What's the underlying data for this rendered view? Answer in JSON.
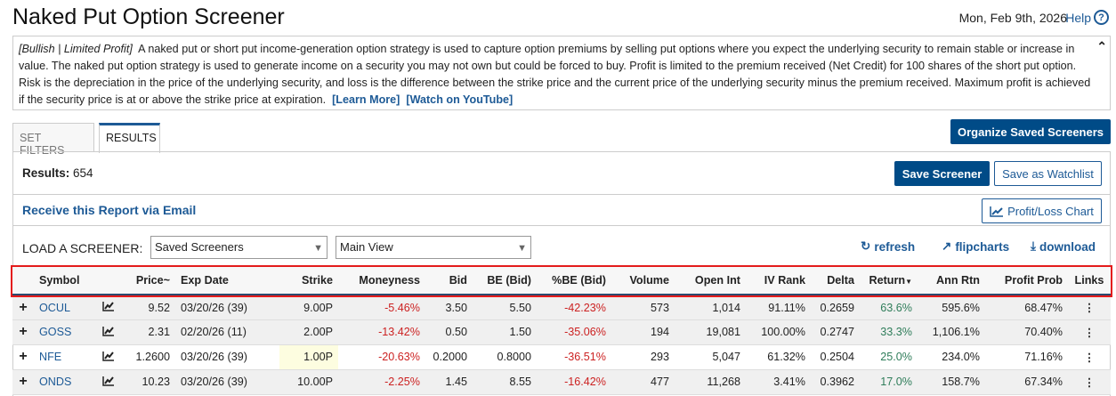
{
  "header": {
    "title": "Naked Put Option Screener",
    "date": "Mon, Feb 9th, 2026",
    "help_label": "Help"
  },
  "description": {
    "tags": "[Bullish | Limited Profit]",
    "text": "A naked put or short put income-generation option strategy is used to capture option premiums by selling put options where you expect the underlying security to remain stable or increase in value. The naked put option strategy is used to generate income on a security you may not own but could be forced to buy. Profit is limited to the premium received (Net Credit) for 100 shares of the short put option. Risk is the depreciation in the price of the underlying security, and loss is the difference between the strike price and the current price of the underlying security minus the premium received. Maximum profit is achieved if the security price is at or above the strike price at expiration.",
    "learn_more": "[Learn More]",
    "youtube": "[Watch on YouTube]"
  },
  "tabs": [
    {
      "label": "SET FILTERS",
      "active": false
    },
    {
      "label": "RESULTS",
      "active": true
    }
  ],
  "toolbar": {
    "organize": "Organize Saved Screeners",
    "results_label": "Results:",
    "results_count": "654",
    "save_screener": "Save Screener",
    "save_watchlist": "Save as Watchlist",
    "email": "Receive this Report via Email",
    "pl_chart": "Profit/Loss Chart",
    "load_label": "LOAD A SCREENER:",
    "select1": "Saved Screeners",
    "select2": "Main View",
    "refresh": "refresh",
    "flipcharts": "flipcharts",
    "download": "download"
  },
  "colors": {
    "accent": "#004b87",
    "negative": "#cc2222",
    "positive": "#2f7d5a",
    "highlight": "#e41b1b"
  },
  "table": {
    "columns": [
      "Symbol",
      "Price~",
      "Exp Date",
      "Strike",
      "Moneyness",
      "Bid",
      "BE (Bid)",
      "%BE (Bid)",
      "Volume",
      "Open Int",
      "IV Rank",
      "Delta",
      "Return",
      "Ann Rtn",
      "Profit Prob",
      "Links"
    ],
    "sort_column": "Return",
    "sort_dir": "desc",
    "rows": [
      {
        "symbol": "OCUL",
        "price": "9.52",
        "exp": "03/20/26 (39)",
        "strike": "9.00P",
        "moneyness": "-5.46%",
        "bid": "3.50",
        "be": "5.50",
        "pbe": "-42.23%",
        "volume": "573",
        "oi": "1,014",
        "ivr": "91.11%",
        "delta": "0.2659",
        "ret": "63.6%",
        "ann": "595.6%",
        "prob": "68.47%"
      },
      {
        "symbol": "GOSS",
        "price": "2.31",
        "exp": "02/20/26 (11)",
        "strike": "2.00P",
        "moneyness": "-13.42%",
        "bid": "0.50",
        "be": "1.50",
        "pbe": "-35.06%",
        "volume": "194",
        "oi": "19,081",
        "ivr": "100.00%",
        "delta": "0.2747",
        "ret": "33.3%",
        "ann": "1,106.1%",
        "prob": "70.40%"
      },
      {
        "symbol": "NFE",
        "price": "1.2600",
        "exp": "03/20/26 (39)",
        "strike": "1.00P",
        "moneyness": "-20.63%",
        "bid": "0.2000",
        "be": "0.8000",
        "pbe": "-36.51%",
        "volume": "293",
        "oi": "5,047",
        "ivr": "61.32%",
        "delta": "0.2504",
        "ret": "25.0%",
        "ann": "234.0%",
        "prob": "71.16%"
      },
      {
        "symbol": "ONDS",
        "price": "10.23",
        "exp": "03/20/26 (39)",
        "strike": "10.00P",
        "moneyness": "-2.25%",
        "bid": "1.45",
        "be": "8.55",
        "pbe": "-16.42%",
        "volume": "477",
        "oi": "11,268",
        "ivr": "3.41%",
        "delta": "0.3962",
        "ret": "17.0%",
        "ann": "158.7%",
        "prob": "67.34%"
      }
    ]
  }
}
